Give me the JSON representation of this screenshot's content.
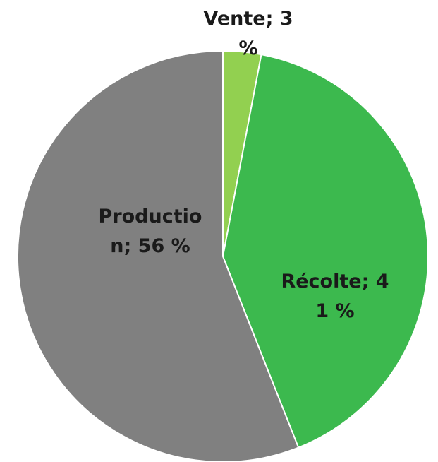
{
  "chart_data": {
    "type": "pie",
    "values": [
      3,
      41,
      56
    ],
    "value_labels": [
      "Vente; 3 %",
      "Récolte; 41 %",
      "Production; 56 %"
    ],
    "colors": [
      "#92d050",
      "#3cb94e",
      "#808080"
    ]
  }
}
